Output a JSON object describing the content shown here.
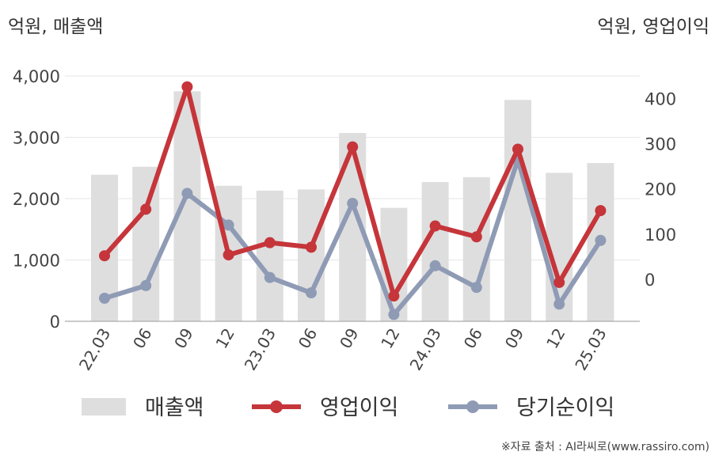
{
  "units": {
    "left": "억원, 매출액",
    "right": "억원, 영업이익"
  },
  "source": "※자료 출처 : AI라씨로(www.rassiro.com)",
  "chart_data": {
    "type": "bar",
    "categories": [
      "22.03",
      "06",
      "09",
      "12",
      "23.03",
      "06",
      "09",
      "12",
      "24.03",
      "06",
      "09",
      "12",
      "25.03"
    ],
    "left_axis": {
      "ylim": [
        0,
        4000
      ],
      "ticks": [
        "0",
        "1,000",
        "2,000",
        "3,000",
        "4,000"
      ],
      "tick_values": [
        0,
        1000,
        2000,
        3000,
        4000
      ]
    },
    "right_axis": {
      "ylim": [
        -93,
        450
      ],
      "ticks": [
        "0",
        "100",
        "200",
        "300",
        "400"
      ],
      "tick_values": [
        0,
        100,
        200,
        300,
        400
      ]
    },
    "grid": true,
    "legend_position": "bottom",
    "series": [
      {
        "name": "매출액",
        "type": "bar",
        "axis": "left",
        "color": "#dedede",
        "values": [
          2390,
          2520,
          3750,
          2210,
          2130,
          2150,
          3070,
          1850,
          2270,
          2350,
          3610,
          2420,
          2580
        ]
      },
      {
        "name": "영업이익",
        "type": "line",
        "axis": "right",
        "color": "#c5353a",
        "values": [
          52,
          155,
          426,
          54,
          81,
          71,
          293,
          -37,
          118,
          94,
          288,
          -7,
          152
        ]
      },
      {
        "name": "당기순이익",
        "type": "line",
        "axis": "right",
        "color": "#8f9bb5",
        "values": [
          -42,
          -14,
          190,
          120,
          4,
          -30,
          168,
          -78,
          30,
          -18,
          265,
          -55,
          86
        ]
      }
    ]
  }
}
